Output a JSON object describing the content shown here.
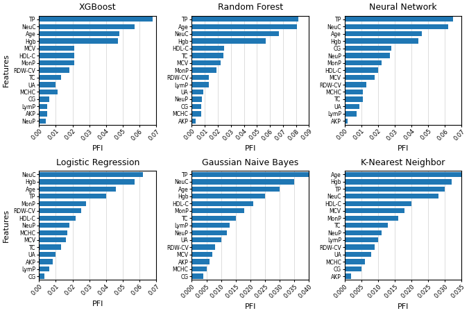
{
  "chart_data": [
    {
      "type": "bar",
      "orientation": "horizontal",
      "title": "XGBoost",
      "categories": [
        "TP",
        "NeuC",
        "Age",
        "Hgb",
        "MCV",
        "HDL-C",
        "MonP",
        "RDW-CV",
        "TC",
        "UA",
        "MCHC",
        "CG",
        "LymP",
        "AKP",
        "NeuP"
      ],
      "values": [
        0.068,
        0.057,
        0.048,
        0.047,
        0.021,
        0.021,
        0.021,
        0.018,
        0.013,
        0.01,
        0.011,
        0.006,
        0.005,
        0.005,
        0.004
      ],
      "xlabel": "PFI",
      "ylabel": "Features",
      "xlim": [
        0,
        0.07
      ],
      "xticks": [
        {
          "value": 0,
          "label": "0.00"
        },
        0.01,
        0.02,
        0.03,
        0.04,
        0.05,
        0.06,
        0.07
      ],
      "grid": true
    },
    {
      "type": "bar",
      "orientation": "horizontal",
      "title": "Random Forest",
      "categories": [
        "TP",
        "Age",
        "NeuC",
        "Hgb",
        "HDL-C",
        "TC",
        "MCV",
        "MonP",
        "RDW-CV",
        "LymP",
        "UA",
        "NeuP",
        "CG",
        "MCHC",
        "AKP"
      ],
      "values": [
        0.082,
        0.081,
        0.067,
        0.057,
        0.025,
        0.024,
        0.022,
        0.019,
        0.013,
        0.013,
        0.009,
        0.008,
        0.007,
        0.007,
        0.003
      ],
      "xlabel": "PFI",
      "xlim": [
        0,
        0.09
      ],
      "xticks": [
        {
          "value": 0,
          "label": "0.00"
        },
        0.01,
        0.02,
        0.03,
        0.04,
        0.05,
        0.06,
        0.07,
        0.08,
        0.09
      ],
      "grid": true
    },
    {
      "type": "bar",
      "orientation": "horizontal",
      "title": "Neural Network",
      "categories": [
        "TP",
        "NeuC",
        "Age",
        "Hgb",
        "CG",
        "NeuP",
        "MonP",
        "HDL-C",
        "MCV",
        "RDW-CV",
        "MCHC",
        "TC",
        "UA",
        "LymP",
        "AKP"
      ],
      "values": [
        0.065,
        0.062,
        0.046,
        0.044,
        0.028,
        0.027,
        0.022,
        0.02,
        0.018,
        0.013,
        0.011,
        0.011,
        0.009,
        0.007,
        0.002
      ],
      "xlabel": "PFI",
      "xlim": [
        0,
        0.07
      ],
      "xticks": [
        {
          "value": 0,
          "label": "0.00"
        },
        0.01,
        0.02,
        0.03,
        0.04,
        0.05,
        0.06,
        0.07
      ],
      "grid": true
    },
    {
      "type": "bar",
      "orientation": "horizontal",
      "title": "Logistic Regression",
      "categories": [
        "NeuC",
        "Hgb",
        "Age",
        "TP",
        "MonP",
        "RDW-CV",
        "HDL-C",
        "NeuP",
        "MCHC",
        "MCV",
        "TC",
        "UA",
        "AKP",
        "LymP",
        "CG"
      ],
      "values": [
        0.062,
        0.057,
        0.046,
        0.04,
        0.028,
        0.025,
        0.022,
        0.018,
        0.017,
        0.016,
        0.013,
        0.01,
        0.008,
        0.006,
        0.003
      ],
      "xlabel": "PFI",
      "ylabel": "Features",
      "xlim": [
        0,
        0.07
      ],
      "xticks": [
        {
          "value": 0,
          "label": "0.00"
        },
        0.01,
        0.02,
        0.03,
        0.04,
        0.05,
        0.06,
        0.07
      ],
      "grid": true
    },
    {
      "type": "bar",
      "orientation": "horizontal",
      "title": "Gaussian Naive Bayes",
      "categories": [
        "TP",
        "NeuC",
        "Age",
        "Hgb",
        "HDL-C",
        "MonP",
        "TC",
        "LymP",
        "NeuP",
        "UA",
        "RDW-CV",
        "MCV",
        "AKP",
        "MCHC",
        "CG"
      ],
      "values": [
        0.04,
        0.035,
        0.03,
        0.025,
        0.021,
        0.018,
        0.015,
        0.013,
        0.012,
        0.01,
        0.008,
        0.007,
        0.006,
        0.005,
        0.004
      ],
      "xlabel": "PFI",
      "xlim": [
        0,
        0.04
      ],
      "xticks": [
        {
          "value": 0,
          "label": "0.000"
        },
        0.005,
        {
          "value": 0.01,
          "label": "0.010"
        },
        0.015,
        {
          "value": 0.02,
          "label": "0.020"
        },
        0.025,
        {
          "value": 0.03,
          "label": "0.030"
        },
        0.035,
        {
          "value": 0.04,
          "label": "0.040"
        }
      ],
      "grid": true
    },
    {
      "type": "bar",
      "orientation": "horizontal",
      "title": "K-Nearest Neighbor",
      "categories": [
        "Age",
        "Hgb",
        "TP",
        "NeuC",
        "HDL-C",
        "MCV",
        "MonP",
        "TC",
        "NeuP",
        "LymP",
        "RDW-CV",
        "UA",
        "MCHC",
        "CG",
        "AKP"
      ],
      "values": [
        0.035,
        0.032,
        0.03,
        0.028,
        0.02,
        0.018,
        0.016,
        0.013,
        0.011,
        0.01,
        0.009,
        0.008,
        0.006,
        0.005,
        0.002
      ],
      "xlabel": "PFI",
      "xlim": [
        0,
        0.035
      ],
      "xticks": [
        {
          "value": 0,
          "label": "0.000"
        },
        0.005,
        {
          "value": 0.01,
          "label": "0.010"
        },
        0.015,
        {
          "value": 0.02,
          "label": "0.020"
        },
        0.025,
        {
          "value": 0.03,
          "label": "0.030"
        },
        0.035
      ],
      "grid": true
    }
  ]
}
